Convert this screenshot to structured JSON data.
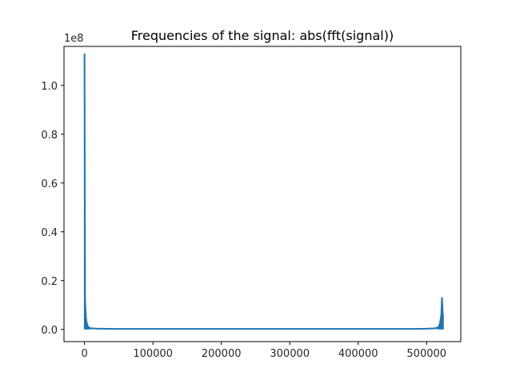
{
  "chart_data": {
    "type": "line",
    "title": "Frequencies of the signal: abs(fft(signal))",
    "xlabel": "",
    "ylabel": "",
    "y_scale_label": "1e8",
    "xlim": [
      -30000,
      550000
    ],
    "ylim": [
      -0.05,
      1.16
    ],
    "x_ticks": [
      0,
      100000,
      200000,
      300000,
      400000,
      500000
    ],
    "x_tick_labels": [
      "0",
      "100000",
      "200000",
      "300000",
      "400000",
      "500000"
    ],
    "y_ticks": [
      0.0,
      0.2,
      0.4,
      0.6,
      0.8,
      1.0
    ],
    "y_tick_labels": [
      "0.0",
      "0.2",
      "0.4",
      "0.6",
      "0.8",
      "1.0"
    ],
    "grid": false,
    "series": [
      {
        "color": "#1f77b4",
        "x": [
          0,
          800,
          2000,
          3000,
          4000,
          5000,
          6500,
          8000,
          12000,
          20000,
          40000,
          80000,
          120000,
          160000,
          200000,
          240000,
          262144,
          280000,
          320000,
          360000,
          400000,
          440000,
          480000,
          500000,
          510000,
          515000,
          517000,
          518500,
          519500,
          520500,
          521500,
          522500,
          523500,
          524287
        ],
        "y": [
          1.13,
          0.12,
          0.05,
          0.03,
          0.02,
          0.012,
          0.008,
          0.005,
          0.004,
          0.003,
          0.002,
          0.002,
          0.002,
          0.002,
          0.002,
          0.002,
          0.002,
          0.002,
          0.002,
          0.002,
          0.002,
          0.002,
          0.002,
          0.003,
          0.004,
          0.006,
          0.01,
          0.015,
          0.025,
          0.04,
          0.06,
          0.13,
          0.07,
          0.05
        ]
      }
    ]
  }
}
